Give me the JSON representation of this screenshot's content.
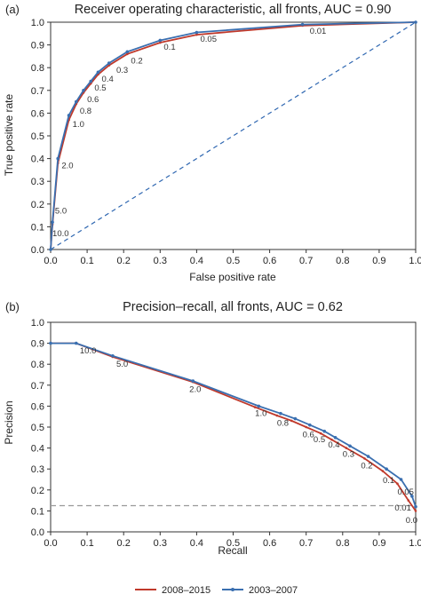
{
  "colors": {
    "series_2008": "#c0392b",
    "series_2003": "#3a6fb0",
    "diagonal": "#2f67b1",
    "baseline": "#999999"
  },
  "chart_data": [
    {
      "panel": "(a)",
      "type": "line",
      "title": "Receiver operating characteristic, all fronts, AUC = 0.90",
      "xlabel": "False positive rate",
      "ylabel": "True positive rate",
      "xlim": [
        0,
        1.0
      ],
      "ylim": [
        0,
        1.0
      ],
      "xticks": [
        "0.0",
        "0.1",
        "0.2",
        "0.3",
        "0.4",
        "0.5",
        "0.6",
        "0.7",
        "0.8",
        "0.9",
        "1.0"
      ],
      "yticks": [
        "0.0",
        "0.1",
        "0.2",
        "0.3",
        "0.4",
        "0.5",
        "0.6",
        "0.7",
        "0.8",
        "0.9",
        "1.0"
      ],
      "grid": false,
      "reference_line": "diagonal",
      "series": [
        {
          "name": "2008–2015",
          "x": [
            0,
            0.005,
            0.02,
            0.05,
            0.07,
            0.09,
            0.11,
            0.13,
            0.16,
            0.21,
            0.3,
            0.4,
            0.69,
            1.0
          ],
          "y": [
            0,
            0.11,
            0.38,
            0.57,
            0.64,
            0.69,
            0.73,
            0.77,
            0.81,
            0.86,
            0.91,
            0.945,
            0.985,
            1.0
          ]
        },
        {
          "name": "2003–2007",
          "x": [
            0,
            0.005,
            0.02,
            0.05,
            0.07,
            0.09,
            0.11,
            0.13,
            0.16,
            0.21,
            0.3,
            0.4,
            0.69,
            1.0
          ],
          "y": [
            0,
            0.12,
            0.4,
            0.59,
            0.65,
            0.7,
            0.74,
            0.78,
            0.82,
            0.87,
            0.92,
            0.955,
            0.99,
            1.0
          ]
        }
      ],
      "threshold_labels": [
        {
          "text": "10.0",
          "x": 0.005,
          "y": 0.07
        },
        {
          "text": "5.0",
          "x": 0.012,
          "y": 0.17
        },
        {
          "text": "2.0",
          "x": 0.03,
          "y": 0.37
        },
        {
          "text": "1.0",
          "x": 0.06,
          "y": 0.55
        },
        {
          "text": "0.8",
          "x": 0.08,
          "y": 0.61
        },
        {
          "text": "0.6",
          "x": 0.1,
          "y": 0.66
        },
        {
          "text": "0.5",
          "x": 0.12,
          "y": 0.71
        },
        {
          "text": "0.4",
          "x": 0.14,
          "y": 0.75
        },
        {
          "text": "0.3",
          "x": 0.18,
          "y": 0.79
        },
        {
          "text": "0.2",
          "x": 0.22,
          "y": 0.83
        },
        {
          "text": "0.1",
          "x": 0.31,
          "y": 0.89
        },
        {
          "text": "0.05",
          "x": 0.41,
          "y": 0.925
        },
        {
          "text": "0.01",
          "x": 0.71,
          "y": 0.96
        }
      ]
    },
    {
      "panel": "(b)",
      "type": "line",
      "title": "Precision–recall, all fronts, AUC = 0.62",
      "xlabel": "Recall",
      "ylabel": "Precision",
      "xlim": [
        0,
        1.0
      ],
      "ylim": [
        0,
        1.0
      ],
      "xticks": [
        "0.0",
        "0.1",
        "0.2",
        "0.3",
        "0.4",
        "0.5",
        "0.6",
        "0.7",
        "0.8",
        "0.9",
        "1.0"
      ],
      "yticks": [
        "0.0",
        "0.1",
        "0.2",
        "0.3",
        "0.4",
        "0.5",
        "0.6",
        "0.7",
        "0.8",
        "0.9",
        "1.0"
      ],
      "grid": false,
      "reference_line": "horizontal at 0.125",
      "series": [
        {
          "name": "2008–2015",
          "x": [
            0,
            0.07,
            0.17,
            0.39,
            0.56,
            0.62,
            0.66,
            0.7,
            0.74,
            0.77,
            0.81,
            0.86,
            0.91,
            0.95,
            0.98,
            1.0
          ],
          "y": [
            0.9,
            0.9,
            0.835,
            0.715,
            0.595,
            0.555,
            0.53,
            0.5,
            0.47,
            0.44,
            0.4,
            0.35,
            0.29,
            0.23,
            0.15,
            0.1
          ]
        },
        {
          "name": "2003–2007",
          "x": [
            0,
            0.07,
            0.17,
            0.39,
            0.57,
            0.63,
            0.67,
            0.71,
            0.75,
            0.78,
            0.82,
            0.87,
            0.92,
            0.96,
            0.99,
            1.0
          ],
          "y": [
            0.9,
            0.9,
            0.84,
            0.72,
            0.6,
            0.565,
            0.54,
            0.51,
            0.48,
            0.45,
            0.41,
            0.36,
            0.3,
            0.25,
            0.17,
            0.12
          ]
        }
      ],
      "threshold_labels": [
        {
          "text": "10.0",
          "x": 0.08,
          "y": 0.865
        },
        {
          "text": "5.0",
          "x": 0.18,
          "y": 0.8
        },
        {
          "text": "2.0",
          "x": 0.38,
          "y": 0.68
        },
        {
          "text": "1.0",
          "x": 0.56,
          "y": 0.565
        },
        {
          "text": "0.8",
          "x": 0.62,
          "y": 0.52
        },
        {
          "text": "0.6",
          "x": 0.69,
          "y": 0.465
        },
        {
          "text": "0.5",
          "x": 0.72,
          "y": 0.44
        },
        {
          "text": "0.4",
          "x": 0.76,
          "y": 0.415
        },
        {
          "text": "0.3",
          "x": 0.8,
          "y": 0.37
        },
        {
          "text": "0.2",
          "x": 0.85,
          "y": 0.315
        },
        {
          "text": "0.1",
          "x": 0.91,
          "y": 0.245
        },
        {
          "text": "0.05",
          "x": 0.95,
          "y": 0.19
        },
        {
          "text": "0.01",
          "x": 0.99,
          "y": 0.115
        },
        {
          "text": "0.0",
          "x": 1.0,
          "y": 0.055
        }
      ]
    }
  ],
  "legend": {
    "placement": "bottom",
    "items": [
      {
        "label": "2008–2015"
      },
      {
        "label": "2003–2007"
      }
    ]
  }
}
